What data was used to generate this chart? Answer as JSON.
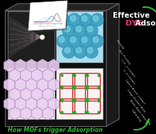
{
  "bg_color": "#000000",
  "title_top_line1": "Effective",
  "title_top_line2_part1": "DYE",
  "title_top_line2_part2": " Adsorption",
  "title_bottom": "How MOFs trigger Adsorption",
  "right_labels": [
    "Porosity",
    "Non-Porosity",
    "C-H...π contact",
    "π...π contact",
    "Cation-Anion contact",
    "Large Surface Area",
    "Acidic-Basic nature",
    "H-Bonding"
  ],
  "arrow_color": "#33bb33",
  "title_color": "#ffffff",
  "dye_color": "#dd3377",
  "bottom_title_color": "#33bb33",
  "label_color": "#cccccc",
  "box_front_color": "#111111",
  "box_edge_color": "#666666",
  "box_top_color": "#222222",
  "box_right_color": "#1a1a1a"
}
